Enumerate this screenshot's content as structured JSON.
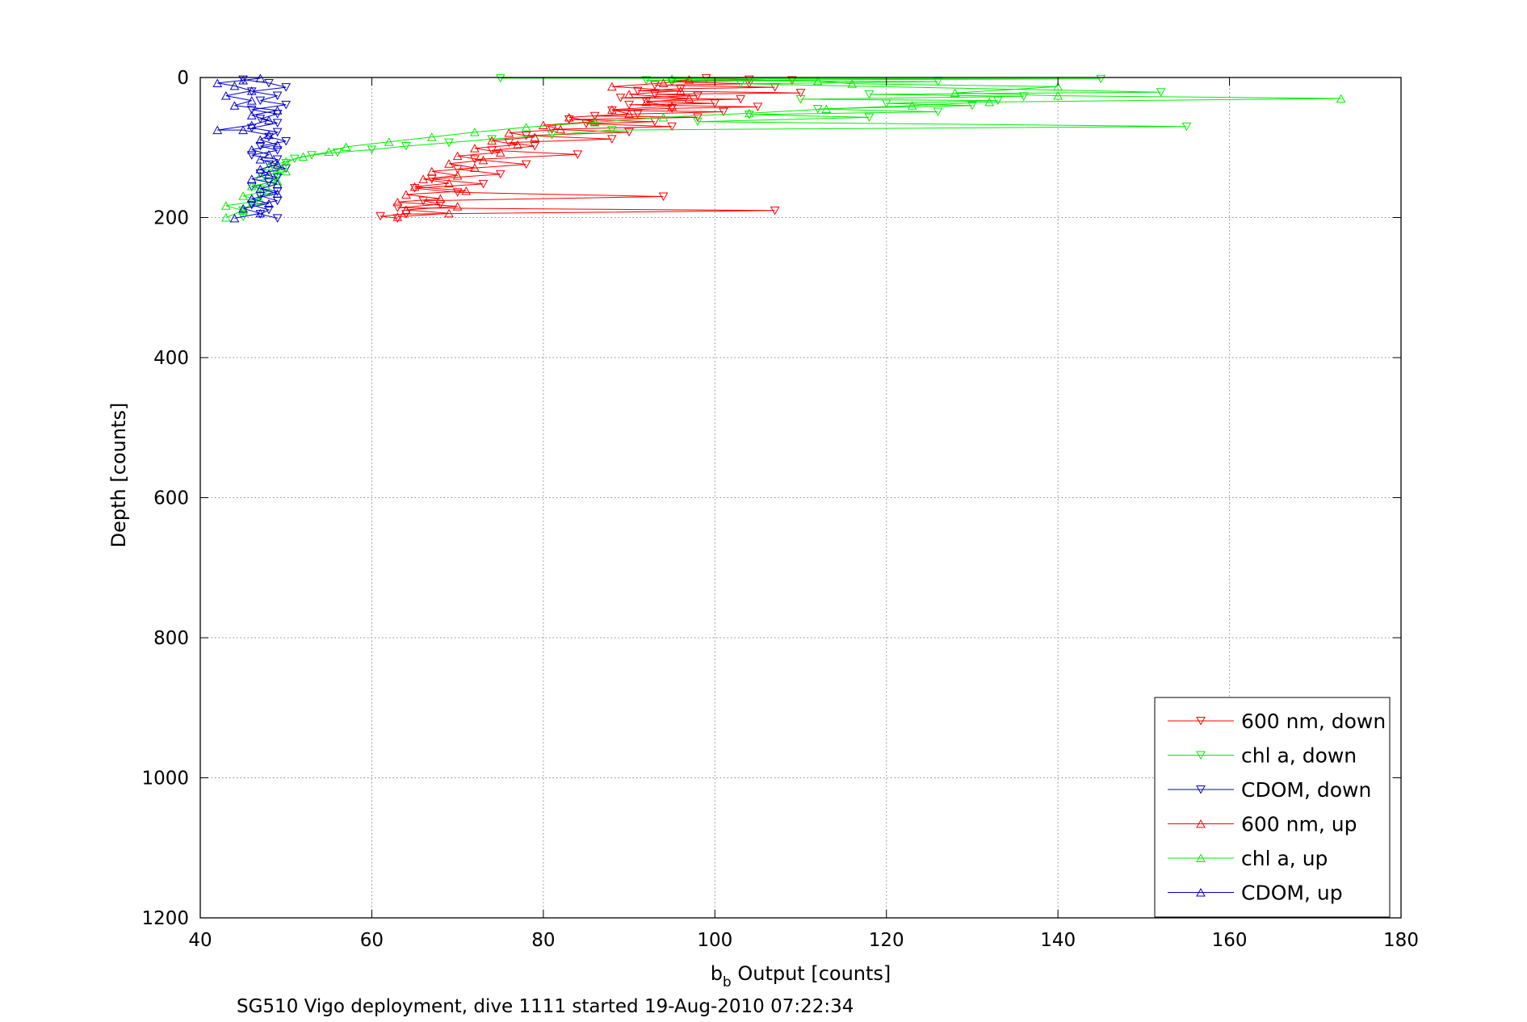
{
  "chart_data": {
    "type": "line",
    "title": "",
    "xlabel": {
      "main": "b",
      "sub": "b",
      "rest": " Output [counts]"
    },
    "ylabel": "Depth [counts]",
    "caption": "SG510 Vigo deployment, dive 1111 started 19-Aug-2010 07:22:34",
    "xlim": [
      40,
      180
    ],
    "ylim": [
      0,
      1200
    ],
    "y_reversed": true,
    "x_ticks": [
      "40",
      "60",
      "80",
      "100",
      "120",
      "140",
      "160",
      "180"
    ],
    "y_ticks": [
      "0",
      "200",
      "400",
      "600",
      "800",
      "1000",
      "1200"
    ],
    "grid": true,
    "legend_position": "bottom-right",
    "series": [
      {
        "name": "600 nm, down",
        "color": "#ff0000",
        "marker": "triangle-down",
        "points": [
          [
            99,
            1
          ],
          [
            104,
            3
          ],
          [
            109,
            4
          ],
          [
            95,
            6
          ],
          [
            104,
            9
          ],
          [
            93,
            11
          ],
          [
            107,
            14
          ],
          [
            96,
            16
          ],
          [
            91,
            19
          ],
          [
            110,
            22
          ],
          [
            93,
            24
          ],
          [
            98,
            26
          ],
          [
            89,
            29
          ],
          [
            103,
            31
          ],
          [
            92,
            34
          ],
          [
            100,
            37
          ],
          [
            90,
            39
          ],
          [
            105,
            42
          ],
          [
            95,
            44
          ],
          [
            88,
            47
          ],
          [
            101,
            49
          ],
          [
            91,
            52
          ],
          [
            86,
            55
          ],
          [
            98,
            57
          ],
          [
            83,
            60
          ],
          [
            93,
            63
          ],
          [
            85,
            66
          ],
          [
            95,
            70
          ],
          [
            81,
            74
          ],
          [
            90,
            78
          ],
          [
            78,
            83
          ],
          [
            88,
            88
          ],
          [
            76,
            93
          ],
          [
            79,
            98
          ],
          [
            74,
            104
          ],
          [
            84,
            110
          ],
          [
            72,
            117
          ],
          [
            78,
            124
          ],
          [
            70,
            131
          ],
          [
            75,
            138
          ],
          [
            67,
            145
          ],
          [
            73,
            152
          ],
          [
            65,
            158
          ],
          [
            70,
            164
          ],
          [
            94,
            170
          ],
          [
            66,
            176
          ],
          [
            68,
            181
          ],
          [
            63,
            186
          ],
          [
            107,
            190
          ],
          [
            64,
            195
          ],
          [
            61,
            198
          ],
          [
            63,
            201
          ]
        ]
      },
      {
        "name": "chl a, down",
        "color": "#00ee00",
        "marker": "triangle-down",
        "points": [
          [
            75,
            1
          ],
          [
            145,
            2
          ],
          [
            92,
            4
          ],
          [
            126,
            6
          ],
          [
            103,
            9
          ],
          [
            152,
            21
          ],
          [
            118,
            24
          ],
          [
            136,
            27
          ],
          [
            110,
            31
          ],
          [
            133,
            33
          ],
          [
            120,
            37
          ],
          [
            130,
            40
          ],
          [
            112,
            45
          ],
          [
            126,
            49
          ],
          [
            104,
            53
          ],
          [
            118,
            57
          ],
          [
            98,
            63
          ],
          [
            155,
            70
          ],
          [
            88,
            75
          ],
          [
            81,
            82
          ],
          [
            74,
            88
          ],
          [
            69,
            93
          ],
          [
            64,
            98
          ],
          [
            60,
            103
          ],
          [
            56,
            107
          ],
          [
            53,
            111
          ],
          [
            51,
            116
          ],
          [
            50,
            122
          ],
          [
            49,
            131
          ],
          [
            49,
            140
          ],
          [
            48,
            150
          ],
          [
            47,
            160
          ],
          [
            47,
            170
          ],
          [
            46,
            180
          ],
          [
            45,
            190
          ],
          [
            45,
            199
          ]
        ]
      },
      {
        "name": "CDOM, down",
        "color": "#0000cc",
        "marker": "triangle-down",
        "points": [
          [
            45,
            3
          ],
          [
            48,
            8
          ],
          [
            50,
            14
          ],
          [
            46,
            20
          ],
          [
            49,
            26
          ],
          [
            47,
            33
          ],
          [
            50,
            39
          ],
          [
            46,
            46
          ],
          [
            49,
            52
          ],
          [
            47,
            59
          ],
          [
            49,
            65
          ],
          [
            46,
            72
          ],
          [
            49,
            78
          ],
          [
            48,
            85
          ],
          [
            50,
            91
          ],
          [
            47,
            98
          ],
          [
            49,
            104
          ],
          [
            46,
            111
          ],
          [
            49,
            117
          ],
          [
            48,
            124
          ],
          [
            50,
            130
          ],
          [
            47,
            137
          ],
          [
            49,
            143
          ],
          [
            48,
            150
          ],
          [
            46,
            156
          ],
          [
            49,
            163
          ],
          [
            47,
            169
          ],
          [
            49,
            176
          ],
          [
            46,
            182
          ],
          [
            48,
            189
          ],
          [
            47,
            195
          ],
          [
            49,
            201
          ]
        ]
      },
      {
        "name": "600 nm, up",
        "color": "#ff0000",
        "marker": "triangle-up",
        "points": [
          [
            63,
            199
          ],
          [
            69,
            194
          ],
          [
            64,
            189
          ],
          [
            70,
            184
          ],
          [
            63,
            178
          ],
          [
            68,
            173
          ],
          [
            64,
            167
          ],
          [
            71,
            162
          ],
          [
            65,
            156
          ],
          [
            69,
            151
          ],
          [
            66,
            145
          ],
          [
            70,
            140
          ],
          [
            67,
            134
          ],
          [
            72,
            129
          ],
          [
            69,
            123
          ],
          [
            73,
            118
          ],
          [
            70,
            112
          ],
          [
            75,
            107
          ],
          [
            72,
            101
          ],
          [
            77,
            96
          ],
          [
            74,
            90
          ],
          [
            79,
            85
          ],
          [
            76,
            79
          ],
          [
            82,
            74
          ],
          [
            80,
            68
          ],
          [
            86,
            63
          ],
          [
            83,
            57
          ],
          [
            90,
            52
          ],
          [
            88,
            46
          ],
          [
            95,
            41
          ],
          [
            92,
            35
          ],
          [
            97,
            30
          ],
          [
            90,
            24
          ],
          [
            96,
            19
          ],
          [
            88,
            13
          ],
          [
            94,
            8
          ],
          [
            97,
            3
          ]
        ]
      },
      {
        "name": "chl a, up",
        "color": "#00ee00",
        "marker": "triangle-up",
        "points": [
          [
            43,
            200
          ],
          [
            45,
            190
          ],
          [
            43,
            183
          ],
          [
            47,
            176
          ],
          [
            45,
            169
          ],
          [
            48,
            162
          ],
          [
            46,
            155
          ],
          [
            49,
            148
          ],
          [
            47,
            141
          ],
          [
            50,
            134
          ],
          [
            48,
            127
          ],
          [
            50,
            120
          ],
          [
            52,
            113
          ],
          [
            55,
            106
          ],
          [
            57,
            99
          ],
          [
            62,
            92
          ],
          [
            67,
            85
          ],
          [
            72,
            78
          ],
          [
            78,
            71
          ],
          [
            86,
            64
          ],
          [
            94,
            57
          ],
          [
            104,
            51
          ],
          [
            113,
            45
          ],
          [
            123,
            40
          ],
          [
            132,
            35
          ],
          [
            173,
            30
          ],
          [
            140,
            26
          ],
          [
            128,
            22
          ],
          [
            140,
            13
          ],
          [
            116,
            9
          ],
          [
            112,
            5
          ],
          [
            95,
            2
          ]
        ]
      },
      {
        "name": "CDOM, up",
        "color": "#0000cc",
        "marker": "triangle-up",
        "points": [
          [
            44,
            201
          ],
          [
            47,
            194
          ],
          [
            45,
            187
          ],
          [
            48,
            180
          ],
          [
            46,
            173
          ],
          [
            49,
            166
          ],
          [
            47,
            159
          ],
          [
            49,
            152
          ],
          [
            46,
            145
          ],
          [
            48,
            138
          ],
          [
            47,
            131
          ],
          [
            49,
            124
          ],
          [
            47,
            117
          ],
          [
            48,
            110
          ],
          [
            46,
            103
          ],
          [
            49,
            96
          ],
          [
            47,
            89
          ],
          [
            48,
            82
          ],
          [
            45,
            75
          ],
          [
            42,
            75
          ],
          [
            46,
            68
          ],
          [
            48,
            61
          ],
          [
            46,
            54
          ],
          [
            49,
            47
          ],
          [
            44,
            40
          ],
          [
            46,
            33
          ],
          [
            43,
            26
          ],
          [
            46,
            19
          ],
          [
            44,
            12
          ],
          [
            42,
            8
          ],
          [
            45,
            4
          ],
          [
            47,
            1
          ]
        ]
      }
    ]
  }
}
